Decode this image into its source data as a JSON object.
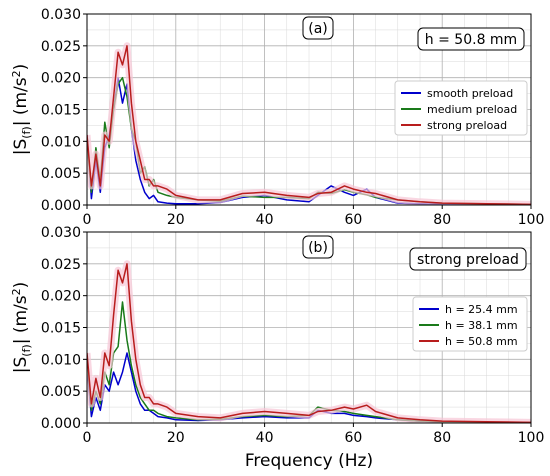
{
  "chart_data": [
    {
      "type": "line",
      "panel_label": "(a)",
      "annotation": "h = 50.8 mm",
      "xlabel": "Frequency (Hz)",
      "ylabel": "|S(f)| (m/s²)",
      "ylabel_parts": {
        "open": "|S",
        "sub": "(f)",
        "close": "| (m/s",
        "sup": "2",
        "end": ")"
      },
      "xlim": [
        0,
        100
      ],
      "ylim": [
        0,
        0.03
      ],
      "xticks": [
        "0",
        "20",
        "40",
        "60",
        "80",
        "100"
      ],
      "yticks": [
        "0.000",
        "0.005",
        "0.010",
        "0.015",
        "0.020",
        "0.025",
        "0.030"
      ],
      "grid": true,
      "legend_position": "right-middle",
      "series": [
        {
          "name": "smooth preload",
          "color": "#0000cc",
          "x": [
            0,
            1,
            2,
            3,
            4,
            5,
            6,
            7,
            8,
            9,
            10,
            11,
            12,
            13,
            14,
            15,
            16,
            18,
            20,
            25,
            30,
            35,
            40,
            45,
            50,
            52,
            55,
            58,
            60,
            63,
            65,
            70,
            75,
            80,
            90,
            100
          ],
          "y": [
            0.011,
            0.001,
            0.007,
            0.002,
            0.009,
            0.011,
            0.015,
            0.02,
            0.016,
            0.019,
            0.012,
            0.007,
            0.004,
            0.002,
            0.001,
            0.0015,
            0.0005,
            0.0003,
            0.0002,
            0.0002,
            0.0004,
            0.0012,
            0.0015,
            0.0008,
            0.0005,
            0.0015,
            0.003,
            0.002,
            0.0015,
            0.0025,
            0.0012,
            0.0003,
            0.0002,
            0.0001,
            0.0001,
            0.0001
          ]
        },
        {
          "name": "medium preload",
          "color": "#1a7a1a",
          "x": [
            0,
            1,
            2,
            3,
            4,
            5,
            6,
            7,
            8,
            9,
            10,
            11,
            12,
            13,
            14,
            15,
            16,
            18,
            20,
            25,
            30,
            35,
            40,
            45,
            50,
            52,
            55,
            58,
            60,
            63,
            65,
            70,
            75,
            80,
            90,
            100
          ],
          "y": [
            0.01,
            0.002,
            0.009,
            0.004,
            0.013,
            0.009,
            0.015,
            0.019,
            0.02,
            0.017,
            0.012,
            0.01,
            0.005,
            0.006,
            0.003,
            0.004,
            0.002,
            0.0015,
            0.0012,
            0.0008,
            0.0006,
            0.0014,
            0.0012,
            0.0012,
            0.001,
            0.002,
            0.0018,
            0.0024,
            0.002,
            0.0016,
            0.0012,
            0.0008,
            0.0005,
            0.0003,
            0.0002,
            0.0001
          ]
        },
        {
          "name": "strong preload",
          "color": "#b81d1d",
          "x": [
            0,
            1,
            2,
            3,
            4,
            5,
            6,
            7,
            8,
            9,
            10,
            11,
            12,
            13,
            14,
            15,
            16,
            18,
            20,
            25,
            30,
            35,
            40,
            45,
            50,
            52,
            55,
            58,
            60,
            63,
            65,
            70,
            75,
            80,
            90,
            100
          ],
          "y": [
            0.011,
            0.003,
            0.008,
            0.003,
            0.011,
            0.01,
            0.017,
            0.024,
            0.022,
            0.025,
            0.016,
            0.01,
            0.007,
            0.004,
            0.004,
            0.003,
            0.003,
            0.0025,
            0.0015,
            0.0008,
            0.0008,
            0.0018,
            0.002,
            0.0015,
            0.0012,
            0.0018,
            0.002,
            0.003,
            0.0025,
            0.002,
            0.0018,
            0.0008,
            0.0005,
            0.0003,
            0.0002,
            0.0001
          ]
        }
      ]
    },
    {
      "type": "line",
      "panel_label": "(b)",
      "annotation": "strong preload",
      "xlabel": "Frequency (Hz)",
      "ylabel": "|S(f)| (m/s²)",
      "ylabel_parts": {
        "open": "|S",
        "sub": "(f)",
        "close": "| (m/s",
        "sup": "2",
        "end": ")"
      },
      "xlim": [
        0,
        100
      ],
      "ylim": [
        0,
        0.03
      ],
      "xticks": [
        "0",
        "20",
        "40",
        "60",
        "80",
        "100"
      ],
      "yticks": [
        "0.000",
        "0.005",
        "0.010",
        "0.015",
        "0.020",
        "0.025",
        "0.030"
      ],
      "grid": true,
      "legend_position": "right-middle",
      "series": [
        {
          "name": "h = 25.4 mm",
          "color": "#0000cc",
          "x": [
            0,
            1,
            2,
            3,
            4,
            5,
            6,
            7,
            8,
            9,
            10,
            11,
            12,
            13,
            14,
            15,
            16,
            18,
            20,
            25,
            30,
            35,
            40,
            45,
            50,
            52,
            55,
            58,
            60,
            63,
            65,
            70,
            75,
            80,
            90,
            100
          ],
          "y": [
            0.009,
            0.001,
            0.004,
            0.002,
            0.006,
            0.005,
            0.008,
            0.006,
            0.008,
            0.011,
            0.008,
            0.005,
            0.003,
            0.002,
            0.002,
            0.0015,
            0.001,
            0.0008,
            0.0005,
            0.0004,
            0.0005,
            0.0008,
            0.001,
            0.0008,
            0.0008,
            0.002,
            0.0015,
            0.0015,
            0.0012,
            0.001,
            0.0008,
            0.0005,
            0.0003,
            0.0002,
            0.0001,
            0.0001
          ]
        },
        {
          "name": "h = 38.1 mm",
          "color": "#1a7a1a",
          "x": [
            0,
            1,
            2,
            3,
            4,
            5,
            6,
            7,
            8,
            9,
            10,
            11,
            12,
            13,
            14,
            15,
            16,
            18,
            20,
            25,
            30,
            35,
            40,
            45,
            50,
            52,
            55,
            58,
            60,
            63,
            65,
            70,
            75,
            80,
            90,
            100
          ],
          "y": [
            0.01,
            0.002,
            0.005,
            0.003,
            0.008,
            0.006,
            0.011,
            0.012,
            0.019,
            0.013,
            0.009,
            0.006,
            0.004,
            0.003,
            0.002,
            0.002,
            0.0015,
            0.001,
            0.0008,
            0.0005,
            0.0006,
            0.001,
            0.0012,
            0.001,
            0.0012,
            0.0025,
            0.002,
            0.0018,
            0.0015,
            0.0012,
            0.001,
            0.0005,
            0.0003,
            0.0002,
            0.0001,
            0.0001
          ]
        },
        {
          "name": "h = 50.8 mm",
          "color": "#b81d1d",
          "x": [
            0,
            1,
            2,
            3,
            4,
            5,
            6,
            7,
            8,
            9,
            10,
            11,
            12,
            13,
            14,
            15,
            16,
            18,
            20,
            25,
            30,
            35,
            40,
            45,
            50,
            52,
            55,
            58,
            60,
            63,
            65,
            70,
            75,
            80,
            90,
            100
          ],
          "y": [
            0.011,
            0.003,
            0.007,
            0.004,
            0.011,
            0.009,
            0.017,
            0.024,
            0.022,
            0.025,
            0.016,
            0.01,
            0.006,
            0.004,
            0.004,
            0.003,
            0.003,
            0.0025,
            0.0015,
            0.001,
            0.0008,
            0.0015,
            0.0018,
            0.0015,
            0.0012,
            0.0018,
            0.002,
            0.0025,
            0.0022,
            0.0028,
            0.0018,
            0.0008,
            0.0005,
            0.0003,
            0.0002,
            0.0001
          ]
        }
      ]
    }
  ]
}
